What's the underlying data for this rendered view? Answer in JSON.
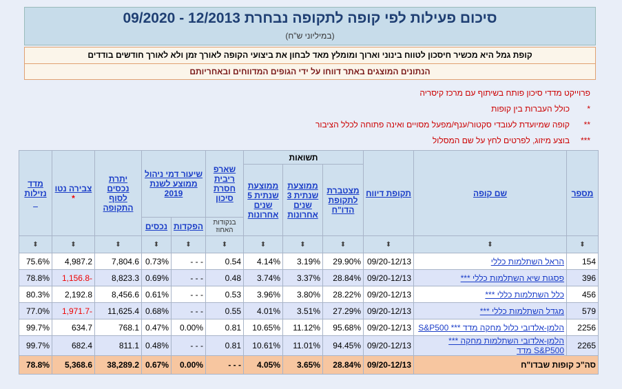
{
  "header": {
    "title": "סיכום פעילות לפי קופה לתקופה נבחרת 12/2013 - 09/2020",
    "subtitle": "(במיליוני ש\"ח)"
  },
  "notices": [
    "קופת גמל היא מכשיר חיסכון לטווח בינוני וארוך ומומלץ מאד לבחון את ביצועי הקופה לאורך זמן ולא לאורך חודשים בודדים",
    "הנתונים המוצגים באתר דווחו על ידי הגופים המדווחים ובאחריותם"
  ],
  "notes": [
    {
      "text": "פרוייקט מדדי סיכון פותח בשיתוף עם מרכז קיסריה"
    },
    {
      "mark": "*",
      "text": "כולל העברות בין קופות"
    },
    {
      "mark": "**",
      "text": "קופה שמיועדת לעובדי סקטור/ענף/מפעל מסויים ואינה פתוחה לכלל הציבור"
    },
    {
      "mark": "***",
      "text": "בוצע מיזוג, לפרטים לחץ על שם המסלול"
    }
  ],
  "table": {
    "group_header": "תשואות",
    "columns": [
      "מספר",
      "שם קופה",
      "תקופת דיווח",
      "מצטברת לתקופת הדו\"ח",
      "ממוצעת שנתית 3 שנים אחרונות",
      "ממוצעת שנתית 5 שנים אחרונות",
      "שארפ ריבית חסרת סיכון",
      "שיעור דמי ניהול ממוצע לשנת 2019",
      "יתרת נכסים לסוף התקופה",
      "צבירה נטו",
      "מדד נזילות"
    ],
    "net_flow_mark": "*",
    "liquidity_mark": "_",
    "sharpe_unit": "בנקודות האחוז",
    "fee_columns": [
      "הפקדות",
      "נכסים"
    ],
    "rows": [
      [
        "154",
        "הראל השתלמות כללי",
        "09/20-12/13",
        "29.90%",
        "3.19%",
        "4.14%",
        "0.54",
        "- - -",
        "0.73%",
        "7,804.6",
        "4,987.2",
        "75.6%"
      ],
      [
        "396",
        "פסגות שיא השתלמות כללי ***",
        "09/20-12/13",
        "28.84%",
        "3.37%",
        "3.74%",
        "0.48",
        "- - -",
        "0.69%",
        "8,823.3",
        "-1,156.8",
        "78.8%"
      ],
      [
        "456",
        "כלל השתלמות כללי ***",
        "09/20-12/13",
        "28.22%",
        "3.80%",
        "3.96%",
        "0.53",
        "- - -",
        "0.61%",
        "8,456.6",
        "2,192.8",
        "80.3%"
      ],
      [
        "579",
        "מגדל השתלמות כללי ***",
        "09/20-12/13",
        "27.29%",
        "3.51%",
        "4.01%",
        "0.55",
        "- - -",
        "0.68%",
        "11,625.4",
        "-1,971.7",
        "77.0%"
      ],
      [
        "2256",
        "הלמן-אלדובי כלול מחקה מדד *** S&P500",
        "09/20-12/13",
        "95.68%",
        "11.12%",
        "10.65%",
        "0.81",
        "0.00%",
        "0.47%",
        "768.1",
        "634.7",
        "99.7%"
      ],
      [
        "2265",
        "הלמן-אלדובי השתלמות מחקה *** S&P500 מדד",
        "09/20-12/13",
        "94.45%",
        "11.01%",
        "10.61%",
        "0.81",
        "- - -",
        "0.48%",
        "811.1",
        "682.4",
        "99.7%"
      ]
    ],
    "total": [
      "סה\"כ קופות שבדו\"ח",
      "09/20-12/13",
      "28.84%",
      "3.65%",
      "4.05%",
      "- - -",
      "0.00%",
      "0.67%",
      "38,289.2",
      "5,368.6",
      "78.8%"
    ]
  }
}
